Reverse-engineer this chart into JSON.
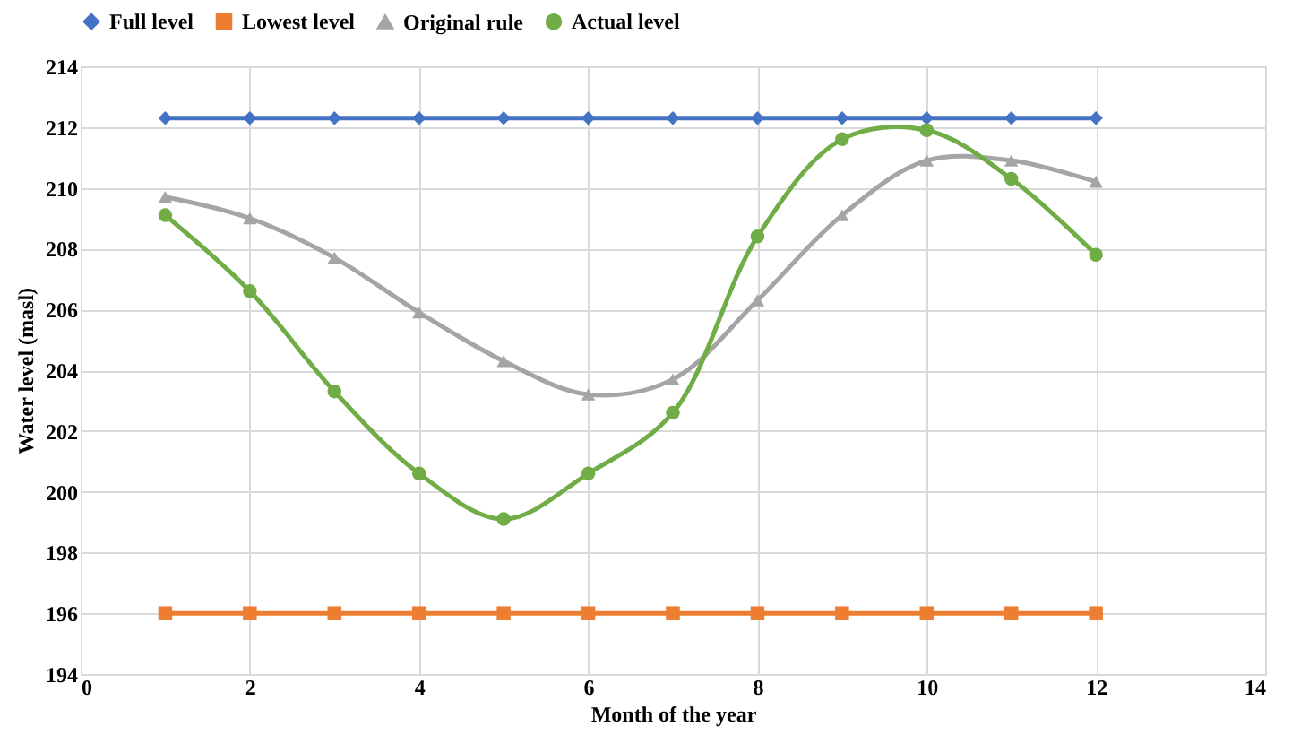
{
  "chart_data": {
    "type": "line",
    "xlabel": "Month of the year",
    "ylabel": "Water level (masl)",
    "x": [
      1,
      2,
      3,
      4,
      5,
      6,
      7,
      8,
      9,
      10,
      11,
      12
    ],
    "series": [
      {
        "name": "Full level",
        "color": "#4472c4",
        "marker": "diamond",
        "values": [
          212.3,
          212.3,
          212.3,
          212.3,
          212.3,
          212.3,
          212.3,
          212.3,
          212.3,
          212.3,
          212.3,
          212.3
        ]
      },
      {
        "name": "Lowest level",
        "color": "#ed7d31",
        "marker": "square",
        "values": [
          196,
          196,
          196,
          196,
          196,
          196,
          196,
          196,
          196,
          196,
          196,
          196
        ]
      },
      {
        "name": "Original rule",
        "color": "#a5a5a5",
        "marker": "triangle",
        "values": [
          209.7,
          209.0,
          207.7,
          205.9,
          204.3,
          203.2,
          203.7,
          206.3,
          209.1,
          210.9,
          210.9,
          210.2
        ]
      },
      {
        "name": "Actual level",
        "color": "#70ad47",
        "marker": "circle",
        "values": [
          209.1,
          206.6,
          203.3,
          200.6,
          199.1,
          200.6,
          202.6,
          208.4,
          211.6,
          211.9,
          210.3,
          207.8
        ]
      }
    ],
    "xlim": [
      0,
      14
    ],
    "xticks": [
      0,
      2,
      4,
      6,
      8,
      10,
      12,
      14
    ],
    "ylim": [
      194,
      214
    ],
    "yticks": [
      194,
      196,
      198,
      200,
      202,
      204,
      206,
      208,
      210,
      212,
      214
    ],
    "grid": true,
    "legend": "top"
  }
}
